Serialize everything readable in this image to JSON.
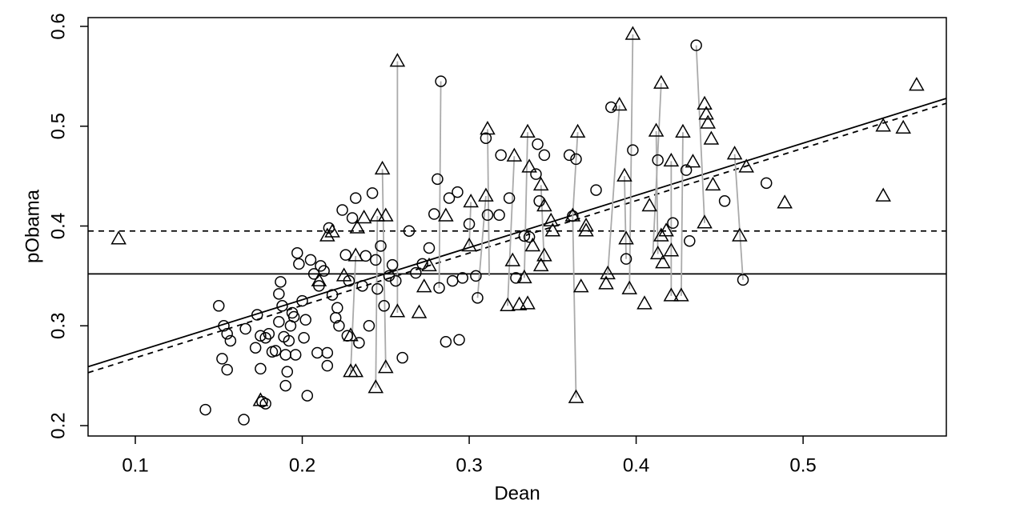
{
  "chart_data": {
    "type": "scatter",
    "x_label": "Dean",
    "y_label": "pObama",
    "xlim": [
      0.0717,
      0.5858
    ],
    "ylim": [
      0.1896,
      0.6088
    ],
    "xticks": [
      0.1,
      0.2,
      0.3,
      0.4,
      0.5
    ],
    "yticks": [
      0.2,
      0.3,
      0.4,
      0.5,
      0.6
    ],
    "hlines": [
      {
        "y": 0.352,
        "style": "solid"
      },
      {
        "y": 0.395,
        "style": "dashed"
      }
    ],
    "ablines": [
      {
        "intercept": 0.2215,
        "slope": 0.523,
        "style": "solid"
      },
      {
        "intercept": 0.2154,
        "slope": 0.525,
        "style": "dashed"
      }
    ],
    "link_color": "#aaaaaa",
    "links": [
      [
        0.257,
        0.565,
        0.257,
        0.313
      ],
      [
        0.398,
        0.592,
        0.396,
        0.337
      ],
      [
        0.283,
        0.545,
        0.282,
        0.338
      ],
      [
        0.436,
        0.581,
        0.441,
        0.403
      ],
      [
        0.415,
        0.543,
        0.41,
        0.372
      ],
      [
        0.311,
        0.497,
        0.312,
        0.35
      ],
      [
        0.335,
        0.494,
        0.333,
        0.348
      ],
      [
        0.365,
        0.494,
        0.362,
        0.41
      ],
      [
        0.364,
        0.228,
        0.362,
        0.41
      ],
      [
        0.248,
        0.457,
        0.25,
        0.258
      ],
      [
        0.412,
        0.495,
        0.413,
        0.372
      ],
      [
        0.39,
        0.521,
        0.383,
        0.352
      ],
      [
        0.428,
        0.494,
        0.427,
        0.33
      ],
      [
        0.459,
        0.472,
        0.464,
        0.346
      ],
      [
        0.327,
        0.47,
        0.323,
        0.32
      ],
      [
        0.31,
        0.43,
        0.305,
        0.328
      ],
      [
        0.421,
        0.465,
        0.421,
        0.33
      ],
      [
        0.343,
        0.441,
        0.345,
        0.36
      ],
      [
        0.393,
        0.45,
        0.394,
        0.367
      ],
      [
        0.232,
        0.37,
        0.229,
        0.254
      ],
      [
        0.245,
        0.41,
        0.244,
        0.238
      ],
      [
        0.301,
        0.424,
        0.3,
        0.38
      ]
    ],
    "series": [
      {
        "marker": "circle",
        "color": "#000000",
        "x": [
          0.142,
          0.165,
          0.178,
          0.176,
          0.15,
          0.153,
          0.155,
          0.157,
          0.152,
          0.155,
          0.166,
          0.172,
          0.173,
          0.175,
          0.178,
          0.18,
          0.175,
          0.182,
          0.184,
          0.187,
          0.186,
          0.186,
          0.188,
          0.189,
          0.19,
          0.19,
          0.191,
          0.192,
          0.193,
          0.194,
          0.195,
          0.196,
          0.197,
          0.198,
          0.2,
          0.201,
          0.202,
          0.203,
          0.205,
          0.207,
          0.209,
          0.21,
          0.211,
          0.213,
          0.215,
          0.215,
          0.216,
          0.218,
          0.22,
          0.221,
          0.222,
          0.224,
          0.226,
          0.227,
          0.228,
          0.23,
          0.232,
          0.234,
          0.236,
          0.238,
          0.24,
          0.242,
          0.244,
          0.245,
          0.247,
          0.249,
          0.252,
          0.254,
          0.256,
          0.26,
          0.264,
          0.268,
          0.272,
          0.276,
          0.279,
          0.281,
          0.283,
          0.282,
          0.286,
          0.288,
          0.29,
          0.293,
          0.294,
          0.296,
          0.3,
          0.304,
          0.305,
          0.31,
          0.311,
          0.318,
          0.319,
          0.324,
          0.328,
          0.333,
          0.336,
          0.34,
          0.341,
          0.342,
          0.345,
          0.36,
          0.362,
          0.364,
          0.376,
          0.385,
          0.398,
          0.394,
          0.413,
          0.422,
          0.43,
          0.432,
          0.436,
          0.453,
          0.464,
          0.478
        ],
        "y": [
          0.216,
          0.206,
          0.222,
          0.224,
          0.32,
          0.3,
          0.292,
          0.285,
          0.267,
          0.256,
          0.297,
          0.278,
          0.311,
          0.29,
          0.288,
          0.292,
          0.257,
          0.274,
          0.275,
          0.344,
          0.332,
          0.304,
          0.32,
          0.289,
          0.271,
          0.24,
          0.254,
          0.285,
          0.3,
          0.313,
          0.309,
          0.271,
          0.373,
          0.362,
          0.325,
          0.288,
          0.306,
          0.23,
          0.366,
          0.352,
          0.273,
          0.34,
          0.36,
          0.355,
          0.26,
          0.273,
          0.398,
          0.331,
          0.308,
          0.318,
          0.3,
          0.416,
          0.371,
          0.29,
          0.345,
          0.408,
          0.428,
          0.283,
          0.34,
          0.37,
          0.3,
          0.433,
          0.366,
          0.337,
          0.38,
          0.32,
          0.35,
          0.361,
          0.345,
          0.268,
          0.395,
          0.353,
          0.362,
          0.378,
          0.412,
          0.447,
          0.545,
          0.338,
          0.284,
          0.428,
          0.345,
          0.434,
          0.286,
          0.348,
          0.402,
          0.35,
          0.328,
          0.488,
          0.411,
          0.411,
          0.471,
          0.428,
          0.348,
          0.39,
          0.389,
          0.452,
          0.482,
          0.425,
          0.471,
          0.471,
          0.41,
          0.467,
          0.436,
          0.519,
          0.476,
          0.367,
          0.466,
          0.403,
          0.456,
          0.385,
          0.581,
          0.425,
          0.346,
          0.443
        ]
      },
      {
        "marker": "triangle",
        "color": "#000000",
        "x": [
          0.09,
          0.257,
          0.398,
          0.568,
          0.311,
          0.335,
          0.365,
          0.412,
          0.415,
          0.39,
          0.441,
          0.442,
          0.443,
          0.445,
          0.428,
          0.548,
          0.56,
          0.248,
          0.327,
          0.336,
          0.393,
          0.421,
          0.434,
          0.466,
          0.459,
          0.343,
          0.446,
          0.31,
          0.301,
          0.489,
          0.548,
          0.362,
          0.349,
          0.408,
          0.441,
          0.462,
          0.394,
          0.415,
          0.383,
          0.382,
          0.396,
          0.367,
          0.405,
          0.413,
          0.416,
          0.421,
          0.427,
          0.421,
          0.323,
          0.335,
          0.33,
          0.333,
          0.343,
          0.326,
          0.364,
          0.25,
          0.244,
          0.232,
          0.229,
          0.257,
          0.27,
          0.273,
          0.25,
          0.237,
          0.245,
          0.233,
          0.218,
          0.215,
          0.225,
          0.21,
          0.175,
          0.229,
          0.232,
          0.286,
          0.3,
          0.345,
          0.37,
          0.35,
          0.418,
          0.37,
          0.338,
          0.345,
          0.276
        ],
        "y": [
          0.387,
          0.565,
          0.592,
          0.541,
          0.497,
          0.494,
          0.494,
          0.495,
          0.543,
          0.521,
          0.522,
          0.512,
          0.503,
          0.487,
          0.494,
          0.5,
          0.498,
          0.457,
          0.47,
          0.459,
          0.45,
          0.465,
          0.464,
          0.459,
          0.472,
          0.441,
          0.441,
          0.43,
          0.424,
          0.423,
          0.43,
          0.41,
          0.405,
          0.42,
          0.403,
          0.39,
          0.387,
          0.39,
          0.352,
          0.342,
          0.337,
          0.339,
          0.322,
          0.372,
          0.363,
          0.375,
          0.33,
          0.33,
          0.32,
          0.322,
          0.321,
          0.348,
          0.36,
          0.365,
          0.228,
          0.258,
          0.238,
          0.254,
          0.254,
          0.314,
          0.313,
          0.339,
          0.41,
          0.408,
          0.41,
          0.398,
          0.394,
          0.39,
          0.35,
          0.345,
          0.225,
          0.29,
          0.37,
          0.41,
          0.38,
          0.42,
          0.4,
          0.395,
          0.395,
          0.395,
          0.38,
          0.37,
          0.36
        ]
      }
    ]
  }
}
